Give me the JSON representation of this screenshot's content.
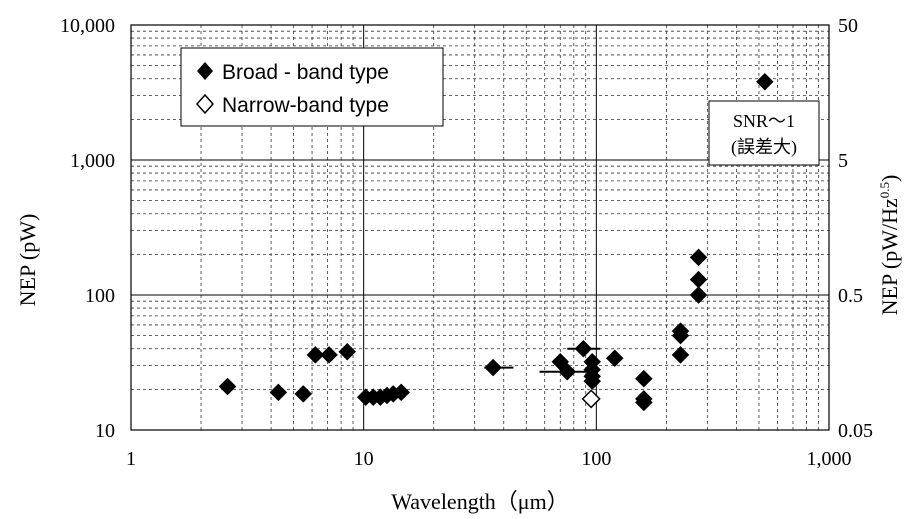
{
  "chart_data": {
    "type": "scatter",
    "x_axis": {
      "label": "Wavelength（μm）",
      "scale": "log",
      "range": [
        1,
        1000
      ],
      "ticks": [
        1,
        10,
        100,
        1000
      ],
      "tick_labels": [
        "1",
        "10",
        "100",
        "1,000"
      ]
    },
    "y_axis_left": {
      "label": "NEP (pW)",
      "scale": "log",
      "range": [
        10,
        10000
      ],
      "ticks": [
        10,
        100,
        1000,
        10000
      ],
      "tick_labels": [
        "10",
        "100",
        "1,000",
        "10,000"
      ]
    },
    "y_axis_right": {
      "label_main": "NEP (pW/Hz",
      "label_sup": "0.5",
      "label_close": ")",
      "scale": "log",
      "range": [
        0.05,
        50
      ],
      "ticks": [
        0.05,
        0.5,
        5,
        50
      ],
      "tick_labels": [
        "0.05",
        "0.5",
        "5",
        "50"
      ]
    },
    "grid": true,
    "legend_position": "top-left",
    "series": [
      {
        "name": "Broad - band type",
        "marker": "filled-diamond",
        "points": [
          {
            "x": 2.6,
            "y": 21
          },
          {
            "x": 4.3,
            "y": 19
          },
          {
            "x": 5.5,
            "y": 18.5
          },
          {
            "x": 6.2,
            "y": 36
          },
          {
            "x": 7.1,
            "y": 36
          },
          {
            "x": 8.5,
            "y": 38
          },
          {
            "x": 10.2,
            "y": 17.5
          },
          {
            "x": 11.0,
            "y": 17.5
          },
          {
            "x": 11.8,
            "y": 17.5
          },
          {
            "x": 12.6,
            "y": 18
          },
          {
            "x": 13.4,
            "y": 18.5
          },
          {
            "x": 14.5,
            "y": 19
          },
          {
            "x": 36,
            "y": 29,
            "xerr": [
              33,
              44
            ]
          },
          {
            "x": 70,
            "y": 32
          },
          {
            "x": 75,
            "y": 27,
            "xerr": [
              57,
              94
            ]
          },
          {
            "x": 88,
            "y": 40,
            "xerr": [
              75,
              104
            ]
          },
          {
            "x": 96,
            "y": 32
          },
          {
            "x": 96,
            "y": 28
          },
          {
            "x": 96,
            "y": 25
          },
          {
            "x": 96,
            "y": 23
          },
          {
            "x": 120,
            "y": 34
          },
          {
            "x": 160,
            "y": 24
          },
          {
            "x": 160,
            "y": 17
          },
          {
            "x": 160,
            "y": 16
          },
          {
            "x": 230,
            "y": 54
          },
          {
            "x": 230,
            "y": 50
          },
          {
            "x": 230,
            "y": 36
          },
          {
            "x": 275,
            "y": 190
          },
          {
            "x": 275,
            "y": 130
          },
          {
            "x": 275,
            "y": 100
          },
          {
            "x": 530,
            "y": 3800
          }
        ]
      },
      {
        "name": "Narrow-band type",
        "marker": "open-diamond",
        "points": [
          {
            "x": 95,
            "y": 17
          }
        ]
      }
    ],
    "annotation": {
      "line1": "SNR～1",
      "line2": "(誤差大)"
    }
  }
}
